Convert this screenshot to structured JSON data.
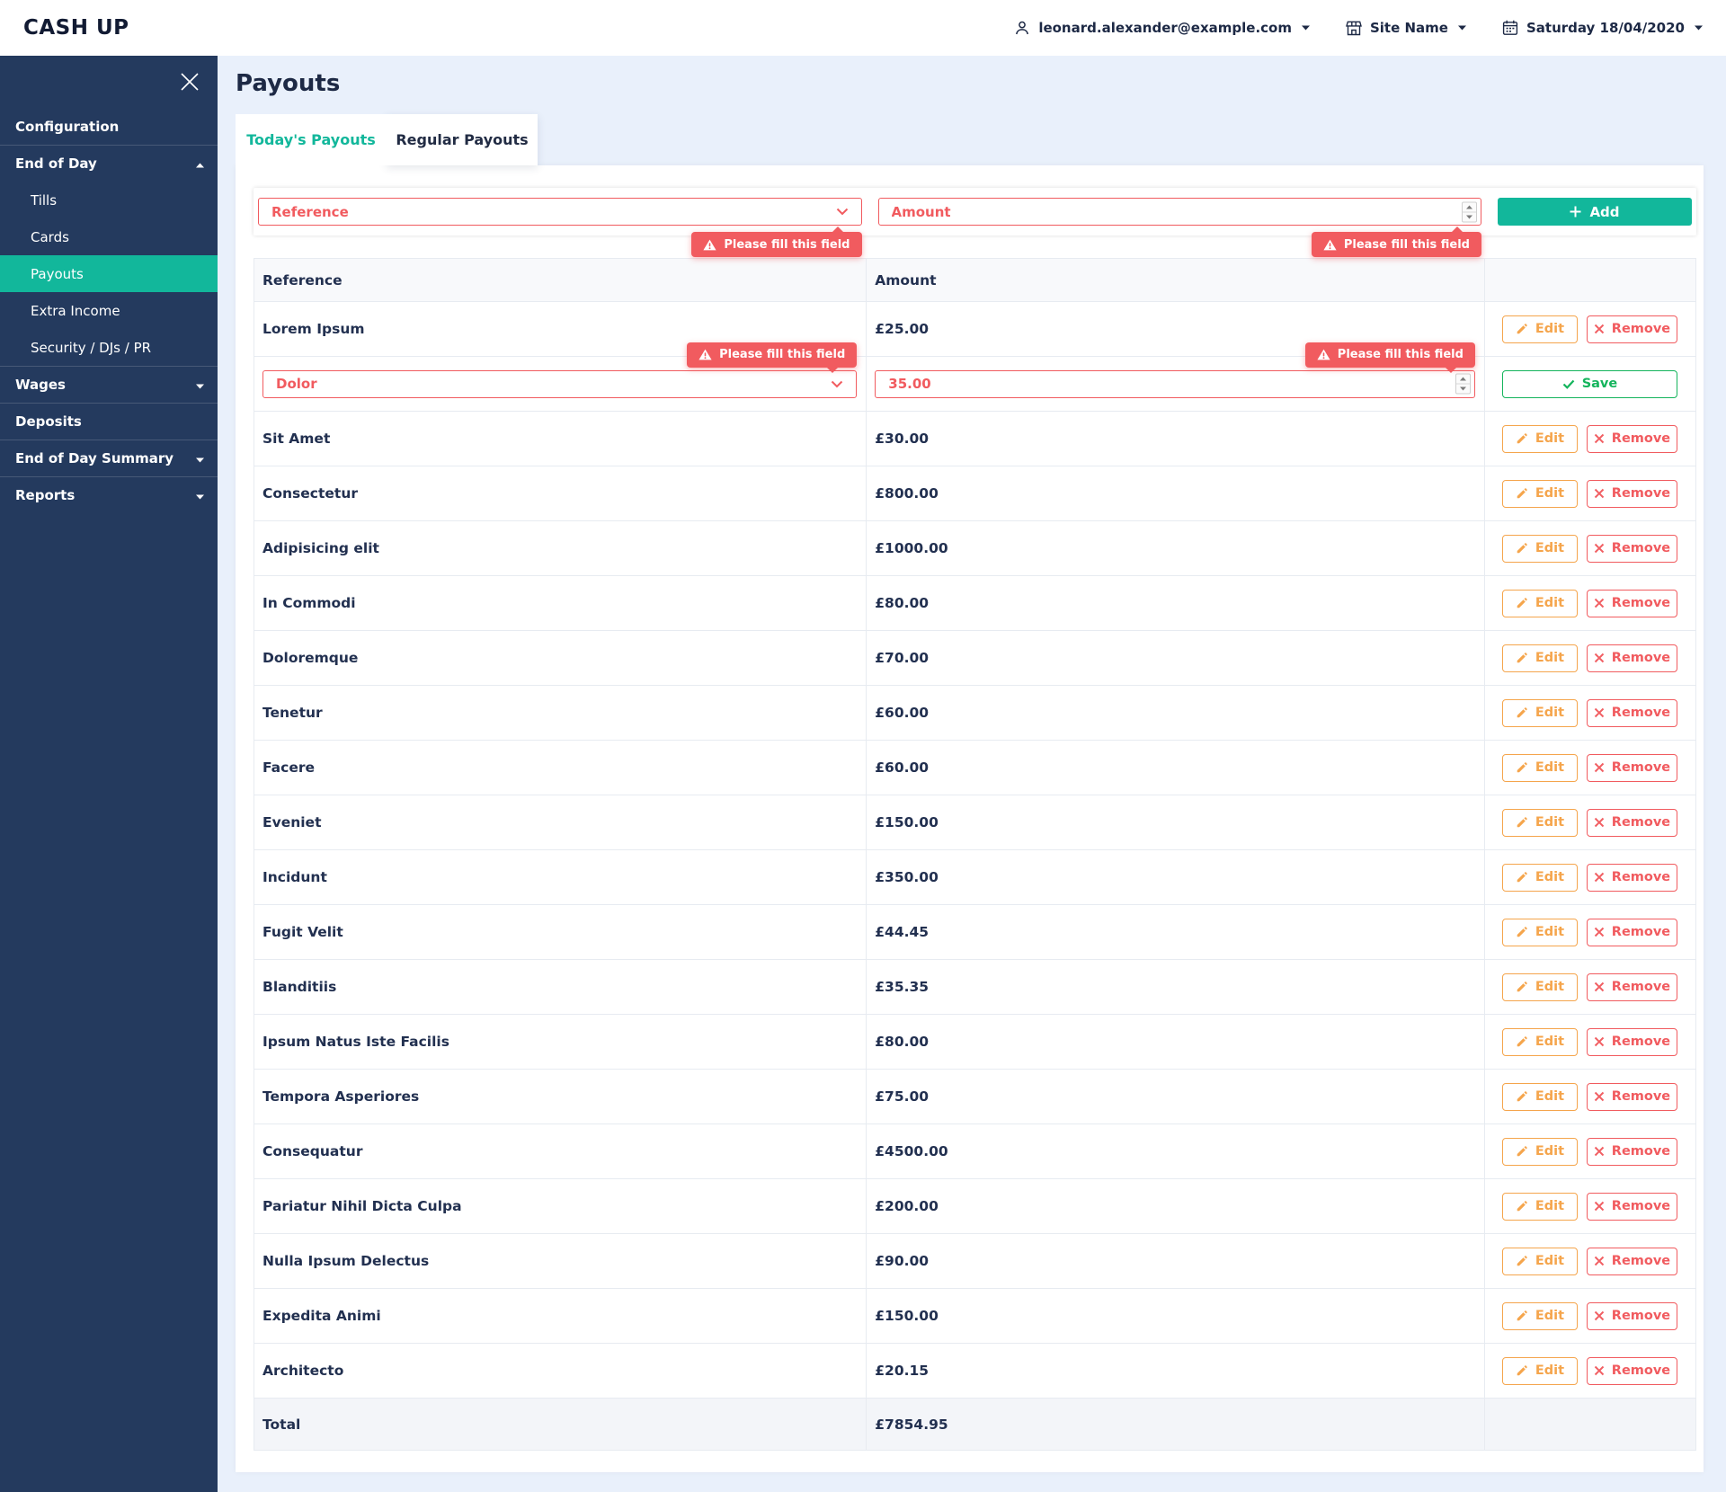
{
  "app": {
    "logo": "CASH UP"
  },
  "header": {
    "user_email": "leonard.alexander@example.com",
    "site_name": "Site Name",
    "date": "Saturday 18/04/2020"
  },
  "sidebar": {
    "items": [
      {
        "label": "Configuration",
        "type": "top",
        "group_start": false,
        "arrow": null,
        "active": false
      },
      {
        "label": "End of Day",
        "type": "top",
        "group_start": true,
        "arrow": "up",
        "active": false
      },
      {
        "label": "Tills",
        "type": "sub",
        "group_start": false,
        "arrow": null,
        "active": false
      },
      {
        "label": "Cards",
        "type": "sub",
        "group_start": false,
        "arrow": null,
        "active": false
      },
      {
        "label": "Payouts",
        "type": "sub",
        "group_start": false,
        "arrow": null,
        "active": true
      },
      {
        "label": "Extra Income",
        "type": "sub",
        "group_start": false,
        "arrow": null,
        "active": false
      },
      {
        "label": "Security / DJs / PR",
        "type": "sub",
        "group_start": false,
        "arrow": null,
        "active": false
      },
      {
        "label": "Wages",
        "type": "top",
        "group_start": true,
        "arrow": "down",
        "active": false
      },
      {
        "label": "Deposits",
        "type": "top",
        "group_start": true,
        "arrow": null,
        "active": false
      },
      {
        "label": "End of Day Summary",
        "type": "top",
        "group_start": true,
        "arrow": "down",
        "active": false
      },
      {
        "label": "Reports",
        "type": "top",
        "group_start": true,
        "arrow": "down",
        "active": false
      }
    ]
  },
  "page": {
    "title": "Payouts",
    "tabs": [
      {
        "label": "Today's Payouts",
        "active": true
      },
      {
        "label": "Regular Payouts",
        "active": false
      }
    ]
  },
  "form": {
    "reference_placeholder": "Reference",
    "amount_placeholder": "Amount",
    "add_label": "Add",
    "validation_message": "Please fill this field"
  },
  "edit_row": {
    "reference_value": "Dolor",
    "amount_value": "35.00",
    "save_label": "Save",
    "validation_message": "Please fill this field"
  },
  "table": {
    "columns": [
      "Reference",
      "Amount",
      ""
    ],
    "edit_label": "Edit",
    "remove_label": "Remove",
    "rows_before_edit": [
      {
        "reference": "Lorem Ipsum",
        "amount": "£25.00"
      }
    ],
    "rows_after_edit": [
      {
        "reference": "Sit Amet",
        "amount": "£30.00"
      },
      {
        "reference": "Consectetur",
        "amount": "£800.00"
      },
      {
        "reference": "Adipisicing elit",
        "amount": "£1000.00"
      },
      {
        "reference": "In Commodi",
        "amount": "£80.00"
      },
      {
        "reference": "Doloremque",
        "amount": "£70.00"
      },
      {
        "reference": "Tenetur",
        "amount": "£60.00"
      },
      {
        "reference": "Facere",
        "amount": "£60.00"
      },
      {
        "reference": "Eveniet",
        "amount": "£150.00"
      },
      {
        "reference": "Incidunt",
        "amount": "£350.00"
      },
      {
        "reference": "Fugit Velit",
        "amount": "£44.45"
      },
      {
        "reference": "Blanditiis",
        "amount": "£35.35"
      },
      {
        "reference": "Ipsum Natus Iste Facilis",
        "amount": "£80.00"
      },
      {
        "reference": "Tempora Asperiores",
        "amount": "£75.00"
      },
      {
        "reference": "Consequatur",
        "amount": "£4500.00"
      },
      {
        "reference": "Pariatur Nihil Dicta Culpa",
        "amount": "£200.00"
      },
      {
        "reference": "Nulla Ipsum Delectus",
        "amount": "£90.00"
      },
      {
        "reference": "Expedita Animi",
        "amount": "£150.00"
      },
      {
        "reference": "Architecto",
        "amount": "£20.15"
      }
    ],
    "total_label": "Total",
    "total_amount": "£7854.95"
  },
  "colors": {
    "brand_teal": "#12b79b",
    "sidebar_navy": "#243a5e",
    "error_red": "#f15b5f",
    "edit_orange": "#f5a54c",
    "save_green": "#14b45c",
    "page_bg": "#e9f0fb"
  }
}
